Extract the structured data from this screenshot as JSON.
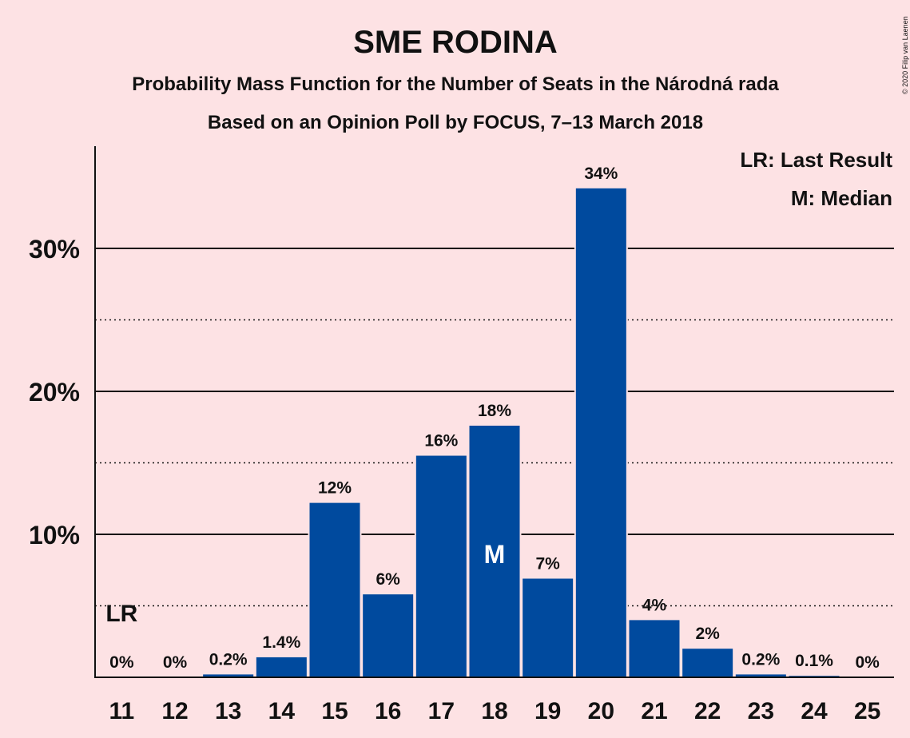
{
  "colors": {
    "background": "#fde2e4",
    "bar": "#004a9e",
    "text": "#111111"
  },
  "chart_data": {
    "type": "bar",
    "title": "SME RODINA",
    "subtitle_1": "Probability Mass Function for the Number of Seats in the Národná rada",
    "subtitle_2": "Based on an Opinion Poll by FOCUS, 7–13 March 2018",
    "copyright": "© 2020 Filip van Laenen",
    "categories": [
      "11",
      "12",
      "13",
      "14",
      "15",
      "16",
      "17",
      "18",
      "19",
      "20",
      "21",
      "22",
      "23",
      "24",
      "25"
    ],
    "values": [
      0,
      0,
      0.2,
      1.4,
      12.2,
      5.8,
      15.5,
      17.6,
      6.9,
      34.2,
      4.0,
      2.0,
      0.2,
      0.1,
      0
    ],
    "value_labels": [
      "0%",
      "0%",
      "0.2%",
      "1.4%",
      "12%",
      "6%",
      "16%",
      "18%",
      "7%",
      "34%",
      "4%",
      "2%",
      "0.2%",
      "0.1%",
      "0%"
    ],
    "ylim": [
      0,
      37
    ],
    "y_ticks": [
      {
        "value": 10,
        "label": "10%"
      },
      {
        "value": 20,
        "label": "20%"
      },
      {
        "value": 30,
        "label": "30%"
      }
    ],
    "dotted_gridlines": [
      5,
      15,
      25
    ],
    "last_result": {
      "category": "11",
      "label": "LR"
    },
    "median": {
      "category": "18",
      "label": "M"
    },
    "legend": {
      "position": "top-right",
      "entries": [
        "LR: Last Result",
        "M: Median"
      ]
    },
    "xlabel": "",
    "ylabel": ""
  }
}
